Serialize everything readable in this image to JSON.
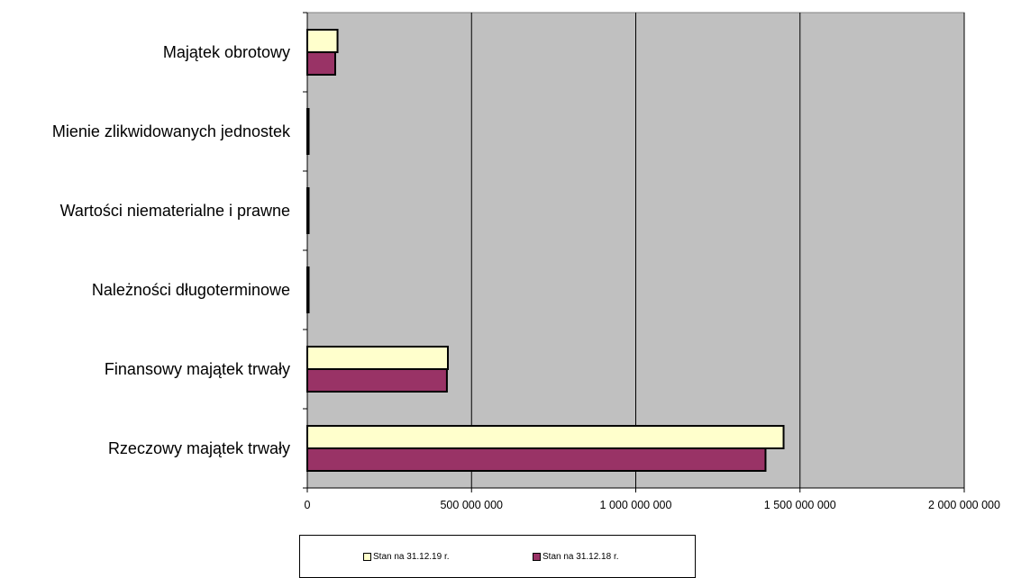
{
  "chart_data": {
    "type": "bar",
    "orientation": "horizontal",
    "categories": [
      "Majątek obrotowy",
      "Mienie zlikwidowanych jednostek",
      "Wartości niematerialne i prawne",
      "Należności długoterminowe",
      "Finansowy majątek trwały",
      "Rzeczowy majątek trwały"
    ],
    "series": [
      {
        "name": "Stan na 31.12.19 r.",
        "color": "#ffffcc",
        "values": [
          92000000,
          2000000,
          2000000,
          2000000,
          428000000,
          1450000000
        ]
      },
      {
        "name": "Stan na 31.12.18 r.",
        "color": "#993366",
        "values": [
          85000000,
          2000000,
          2000000,
          2000000,
          425000000,
          1395000000
        ]
      }
    ],
    "xlim": [
      0,
      2000000000
    ],
    "xticks": [
      0,
      500000000,
      1000000000,
      1500000000,
      2000000000
    ],
    "xtick_labels": [
      "0",
      "500 000 000",
      "1 000 000 000",
      "1 500 000 000",
      "2 000 000 000"
    ],
    "grid": true,
    "plot_background": "#c0c0c0",
    "legend_position": "bottom"
  }
}
